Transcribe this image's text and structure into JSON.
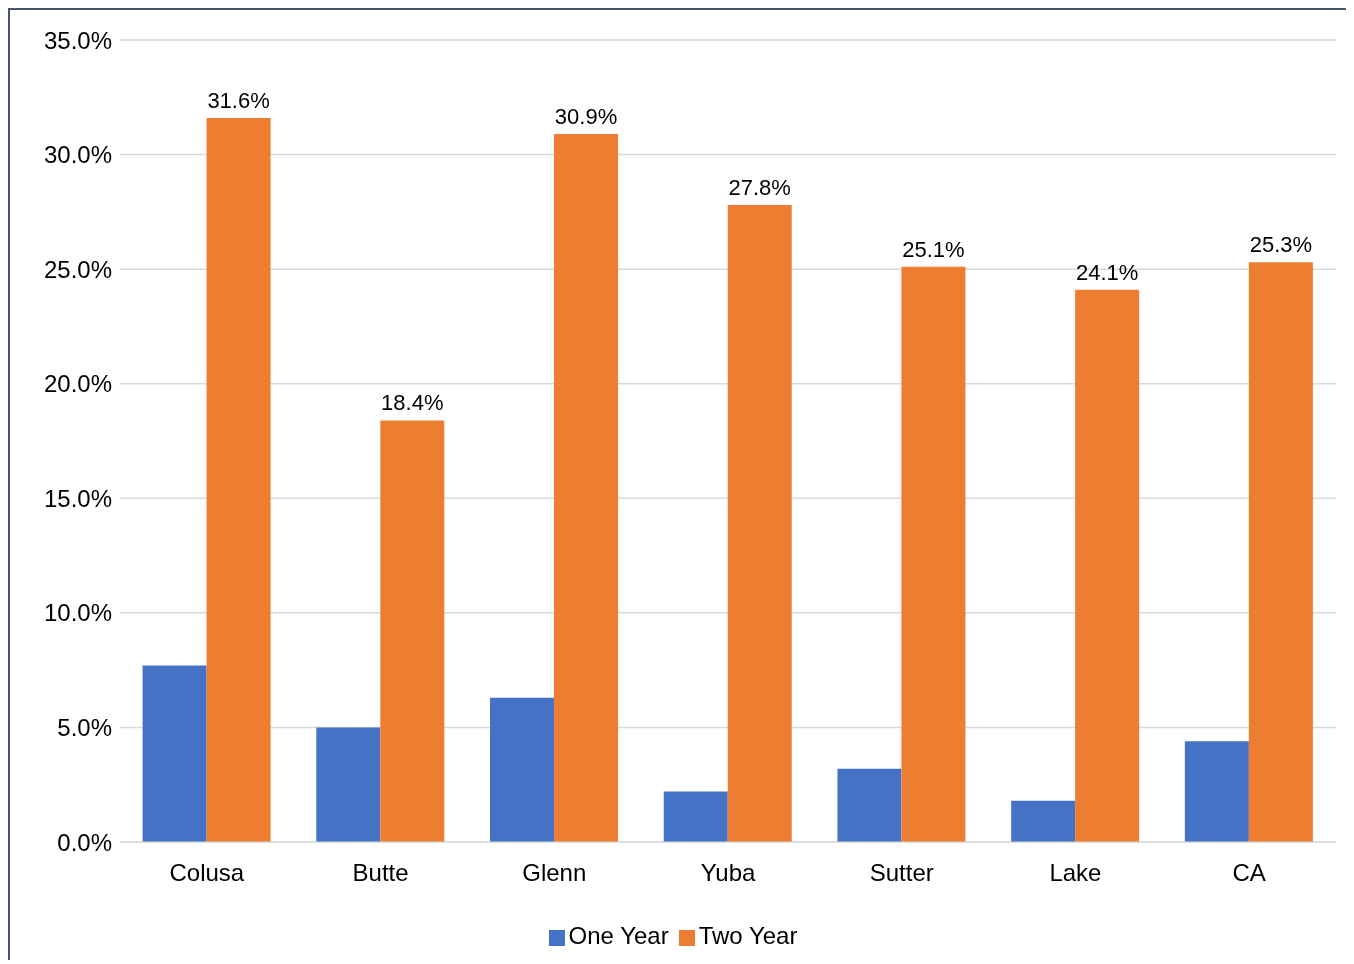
{
  "chart_data": {
    "type": "bar",
    "categories": [
      "Colusa",
      "Butte",
      "Glenn",
      "Yuba",
      "Sutter",
      "Lake",
      "CA"
    ],
    "series": [
      {
        "name": "One Year",
        "color": "#4472c4",
        "values": [
          7.7,
          5.0,
          6.3,
          2.2,
          3.2,
          1.8,
          4.4
        ]
      },
      {
        "name": "Two Year",
        "color": "#ed7d31",
        "values": [
          31.6,
          18.4,
          30.9,
          27.8,
          25.1,
          24.1,
          25.3
        ],
        "value_labels": [
          "31.6%",
          "18.4%",
          "30.9%",
          "27.8%",
          "25.1%",
          "24.1%",
          "25.3%"
        ]
      }
    ],
    "ylim": [
      0,
      35
    ],
    "yticks": [
      {
        "value": 0,
        "label": "0.0%"
      },
      {
        "value": 5,
        "label": "5.0%"
      },
      {
        "value": 10,
        "label": "10.0%"
      },
      {
        "value": 15,
        "label": "15.0%"
      },
      {
        "value": 20,
        "label": "20.0%"
      },
      {
        "value": 25,
        "label": "25.0%"
      },
      {
        "value": 30,
        "label": "30.0%"
      },
      {
        "value": 35,
        "label": "35.0%"
      }
    ],
    "grid": "y",
    "legend": "bottom"
  }
}
